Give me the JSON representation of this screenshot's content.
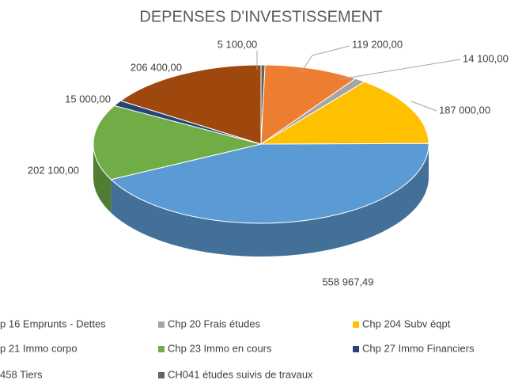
{
  "chart_data": {
    "type": "pie",
    "title": "DEPENSES D'INVESTISSEMENT",
    "categories": [
      "p 16 Emprunts - Dettes",
      "Chp 20 Frais études",
      "Chp 204 Subv éqpt",
      "p 21 Immo corpo",
      "Chp 23 Immo en cours",
      "Chp 27 Immo Financiers",
      "458 Tiers",
      "CH041 études suivis de travaux"
    ],
    "values": [
      558967.49,
      14100,
      187000,
      119200,
      202100,
      15000,
      206400,
      5100
    ],
    "value_labels": [
      "558 967,49",
      "14 100,00",
      "187 000,00",
      "119 200,00",
      "202 100,00",
      "15 000,00",
      "206 400,00",
      "5 100,00"
    ],
    "colors": [
      "#5b9bd5",
      "#a5a5a5",
      "#ffc000",
      "#ed7d31",
      "#70ad47",
      "#264478",
      "#9e480e",
      "#636363"
    ],
    "legend": "bottom"
  }
}
